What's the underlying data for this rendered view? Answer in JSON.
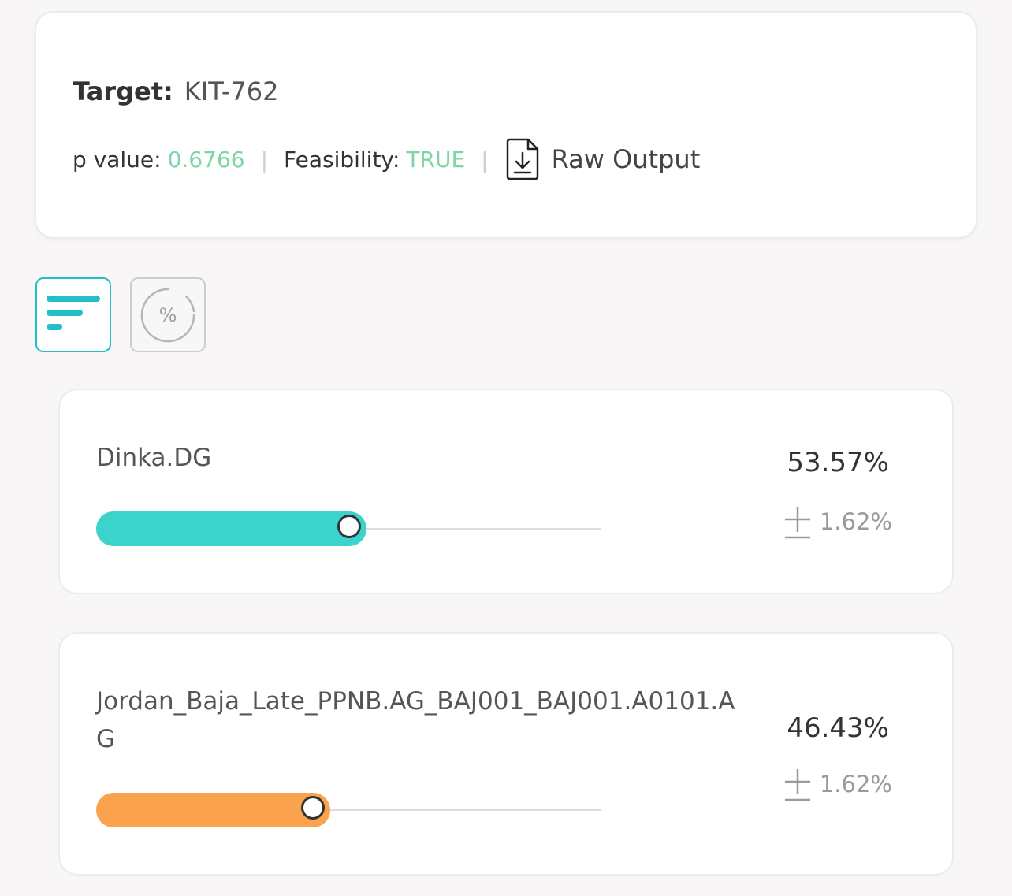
{
  "summary": {
    "target_label": "Target:",
    "target_value": "KIT-762",
    "p_value_label": "p value:",
    "p_value": "0.6766",
    "feasibility_label": "Feasibility:",
    "feasibility_value": "TRUE",
    "separator": "|",
    "raw_output_label": "Raw Output",
    "raw_output_icon": "file-download-icon"
  },
  "view_toggle": {
    "list_icon": "bar-list-icon",
    "percent_icon": "percent-circle-icon",
    "percent_symbol": "%",
    "active": "list"
  },
  "results": [
    {
      "name": "Dinka.DG",
      "percent": "53.57%",
      "error": "1.62%",
      "fraction": 0.5357,
      "color": "#3cd3cc"
    },
    {
      "name": "Jordan_Baja_Late_PPNB.AG_BAJ001_BAJ001.A0101.AG",
      "percent": "46.43%",
      "error": "1.62%",
      "fraction": 0.4643,
      "color": "#fba24f"
    }
  ],
  "colors": {
    "accent": "#22bfc9",
    "value_green": "#7ed6a7"
  }
}
